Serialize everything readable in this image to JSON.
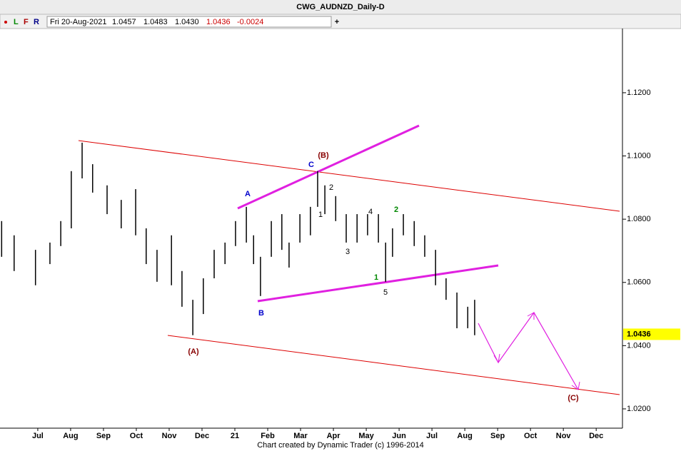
{
  "header": {
    "title": "CWG_AUDNZD_Daily-D",
    "buttons": [
      "L",
      "F",
      "R"
    ],
    "date": "Fri 20-Aug-2021",
    "open": "1.0457",
    "high": "1.0483",
    "low": "1.0430",
    "close": "1.0436",
    "change": "-0.0024"
  },
  "footer": "Chart created by Dynamic Trader  (c) 1996-2014",
  "chart_data": {
    "type": "ohlc",
    "color": "#000000",
    "x": [
      -1.1,
      -0.72,
      -0.07,
      0.37,
      0.7,
      1.02,
      1.35,
      1.67,
      2.11,
      2.54,
      2.98,
      3.3,
      3.63,
      4.07,
      4.39,
      4.72,
      5.04,
      5.37,
      5.7,
      6.02,
      6.35,
      6.57,
      6.78,
      7.11,
      7.43,
      7.65,
      7.98,
      8.3,
      8.52,
      8.74,
      9.07,
      9.39,
      9.72,
      10.04,
      10.37,
      10.59,
      10.8,
      11.13,
      11.46,
      11.78,
      12.11,
      12.43,
      12.76,
      13.09,
      13.3
    ],
    "high": [
      1.0794,
      1.0749,
      1.0703,
      1.0726,
      1.0794,
      1.0952,
      1.1042,
      1.0974,
      1.0907,
      1.0861,
      1.0895,
      1.0771,
      1.0703,
      1.0749,
      1.0636,
      1.0545,
      1.0613,
      1.0703,
      1.0726,
      1.0794,
      1.0839,
      1.0749,
      1.0681,
      1.0794,
      1.0816,
      1.0726,
      1.0816,
      1.0839,
      1.0952,
      1.0907,
      1.0873,
      1.0816,
      1.0816,
      1.0816,
      1.0816,
      1.0726,
      1.0771,
      1.0816,
      1.0794,
      1.0749,
      1.0703,
      1.0613,
      1.0568,
      1.0523,
      1.0545
    ],
    "low": [
      1.0681,
      1.0636,
      1.0591,
      1.0658,
      1.0715,
      1.0771,
      1.0929,
      1.0884,
      1.0816,
      1.0771,
      1.0749,
      1.0658,
      1.0602,
      1.0591,
      1.0523,
      1.0433,
      1.05,
      1.0613,
      1.0658,
      1.0715,
      1.0726,
      1.0658,
      1.0557,
      1.0681,
      1.0703,
      1.0647,
      1.0726,
      1.0749,
      1.0839,
      1.0816,
      1.0794,
      1.0726,
      1.0726,
      1.0749,
      1.0726,
      1.0602,
      1.0681,
      1.0749,
      1.0715,
      1.0681,
      1.0591,
      1.0545,
      1.0455,
      1.0455,
      1.0433
    ],
    "xlim": [
      -1.15,
      17.8
    ],
    "xticks": [
      {
        "value": 0,
        "label": "Jul"
      },
      {
        "value": 1,
        "label": "Aug"
      },
      {
        "value": 2,
        "label": "Sep"
      },
      {
        "value": 3,
        "label": "Oct"
      },
      {
        "value": 4,
        "label": "Nov"
      },
      {
        "value": 5,
        "label": "Dec"
      },
      {
        "value": 6,
        "label": "21"
      },
      {
        "value": 7,
        "label": "Feb"
      },
      {
        "value": 8,
        "label": "Mar"
      },
      {
        "value": 9,
        "label": "Apr"
      },
      {
        "value": 10,
        "label": "May"
      },
      {
        "value": 11,
        "label": "Jun"
      },
      {
        "value": 12,
        "label": "Jul"
      },
      {
        "value": 13,
        "label": "Aug"
      },
      {
        "value": 14,
        "label": "Sep"
      },
      {
        "value": 15,
        "label": "Oct"
      },
      {
        "value": 16,
        "label": "Nov"
      },
      {
        "value": 17,
        "label": "Dec"
      }
    ],
    "ylim": [
      1.0139,
      1.1403
    ],
    "yticks": [
      {
        "value": 1.02,
        "label": "1.0200"
      },
      {
        "value": 1.04,
        "label": "1.0400"
      },
      {
        "value": 1.06,
        "label": "1.0600"
      },
      {
        "value": 1.08,
        "label": "1.0800"
      },
      {
        "value": 1.1,
        "label": "1.1000"
      },
      {
        "value": 1.12,
        "label": "1.1200"
      }
    ],
    "last_price": {
      "value": 1.0436,
      "label": "1.0436"
    },
    "annotations": [
      "(A)",
      "(B)",
      "A",
      "B",
      "C",
      "1",
      "2",
      "3",
      "4",
      "5",
      "1",
      "2",
      "(C)"
    ]
  }
}
